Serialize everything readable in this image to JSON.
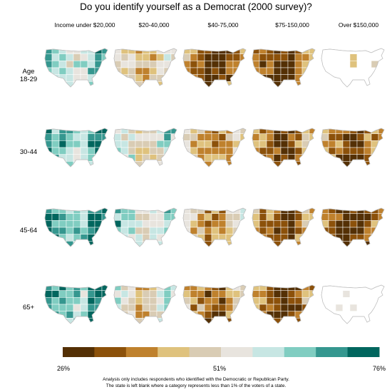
{
  "title": "Do you identify yourself as a Democrat (2000 survey)?",
  "columns": [
    "Income under $20,000",
    "$20-40,000",
    "$40-75,000",
    "$75-150,000",
    "Over $150,000"
  ],
  "rows": [
    {
      "label_line1": "Age",
      "label_line2": "18-29"
    },
    {
      "label_line1": "30-44",
      "label_line2": ""
    },
    {
      "label_line1": "45-64",
      "label_line2": ""
    },
    {
      "label_line1": "65+",
      "label_line2": ""
    }
  ],
  "legend": {
    "min_label": "26%",
    "mid_label": "51%",
    "max_label": "76%",
    "min": 26,
    "max": 76,
    "colors": [
      "#543005",
      "#8c510a",
      "#bf812d",
      "#dfc27d",
      "#d9ccb4",
      "#e8e4de",
      "#c7e6e3",
      "#80cdc1",
      "#35978f",
      "#01665e"
    ]
  },
  "note_line1": "Analysis only includes respondents who identified with the Democratic or Republican Party.",
  "note_line2": "The state is left blank where a category represents less than 1% of the voters of a state.",
  "chart_data": {
    "type": "heatmap",
    "description_of_values": "approximate average Democrat share (%) shown per panel",
    "cells": [
      [
        62,
        48,
        36,
        33,
        null
      ],
      [
        66,
        55,
        44,
        38,
        36
      ],
      [
        68,
        60,
        45,
        38,
        34
      ],
      [
        68,
        52,
        40,
        35,
        null
      ]
    ]
  }
}
